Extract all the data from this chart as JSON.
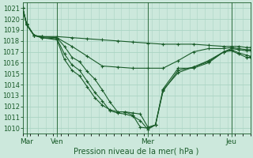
{
  "xlabel": "Pression niveau de la mer( hPa )",
  "ylim": [
    1009.5,
    1021.5
  ],
  "yticks": [
    1010,
    1011,
    1012,
    1013,
    1014,
    1015,
    1016,
    1017,
    1018,
    1019,
    1020,
    1021
  ],
  "xlim": [
    0,
    120
  ],
  "xtick_positions": [
    2,
    18,
    66,
    110
  ],
  "xtick_labels": [
    "Mar",
    "Ven",
    "Mer",
    "Jeu"
  ],
  "vlines": [
    2,
    18,
    66,
    110
  ],
  "bg_color": "#cce8dc",
  "grid_color": "#aad4c4",
  "line_color": "#1a5c2a",
  "series": [
    {
      "x": [
        0,
        2,
        6,
        10,
        18,
        26,
        34,
        42,
        50,
        58,
        66,
        74,
        82,
        90,
        98,
        106,
        110,
        114,
        118,
        120
      ],
      "y": [
        1021,
        1019.6,
        1018.5,
        1018.4,
        1018.4,
        1018.3,
        1018.2,
        1018.1,
        1018.0,
        1017.9,
        1017.8,
        1017.7,
        1017.7,
        1017.7,
        1017.6,
        1017.5,
        1017.5,
        1017.5,
        1017.4,
        1017.4
      ]
    },
    {
      "x": [
        0,
        2,
        6,
        10,
        18,
        26,
        34,
        42,
        50,
        58,
        66,
        74,
        82,
        90,
        98,
        106,
        110,
        114,
        118,
        120
      ],
      "y": [
        1021,
        1019.5,
        1018.5,
        1018.4,
        1018.3,
        1017.5,
        1016.6,
        1015.7,
        1015.6,
        1015.5,
        1015.5,
        1015.5,
        1016.2,
        1017.0,
        1017.3,
        1017.3,
        1017.4,
        1017.3,
        1017.2,
        1017.2
      ]
    },
    {
      "x": [
        0,
        2,
        6,
        10,
        18,
        22,
        26,
        30,
        34,
        38,
        42,
        46,
        50,
        54,
        58,
        62,
        66,
        70,
        74,
        82,
        90,
        98,
        106,
        110,
        114,
        118,
        120
      ],
      "y": [
        1021,
        1019.5,
        1018.5,
        1018.4,
        1018.3,
        1017.5,
        1016.5,
        1016.1,
        1015.2,
        1014.5,
        1013.5,
        1012.4,
        1011.5,
        1011.5,
        1011.4,
        1011.3,
        1010.1,
        1010.3,
        1013.6,
        1015.5,
        1015.5,
        1016.0,
        1017.0,
        1017.3,
        1017.2,
        1017.1,
        1017.1
      ]
    },
    {
      "x": [
        0,
        2,
        6,
        10,
        18,
        22,
        26,
        30,
        34,
        38,
        42,
        46,
        50,
        54,
        58,
        62,
        66,
        70,
        74,
        82,
        90,
        98,
        106,
        110,
        114,
        118,
        120
      ],
      "y": [
        1021,
        1019.5,
        1018.5,
        1018.3,
        1018.2,
        1016.8,
        1015.8,
        1015.3,
        1014.3,
        1013.3,
        1012.5,
        1011.6,
        1011.4,
        1011.3,
        1011.1,
        1010.7,
        1009.9,
        1010.3,
        1013.4,
        1015.3,
        1015.6,
        1016.1,
        1017.0,
        1017.2,
        1016.9,
        1016.7,
        1016.6
      ]
    },
    {
      "x": [
        0,
        2,
        6,
        10,
        18,
        22,
        26,
        30,
        34,
        38,
        42,
        46,
        50,
        54,
        58,
        62,
        66,
        70,
        74,
        82,
        90,
        98,
        106,
        110,
        114,
        118,
        120
      ],
      "y": [
        1021,
        1019.5,
        1018.5,
        1018.3,
        1018.1,
        1016.3,
        1015.3,
        1014.8,
        1013.8,
        1012.8,
        1012.1,
        1011.7,
        1011.5,
        1011.5,
        1011.2,
        1010.1,
        1010.0,
        1010.3,
        1013.5,
        1015.1,
        1015.6,
        1016.2,
        1017.0,
        1017.1,
        1016.8,
        1016.5,
        1016.5
      ]
    }
  ]
}
